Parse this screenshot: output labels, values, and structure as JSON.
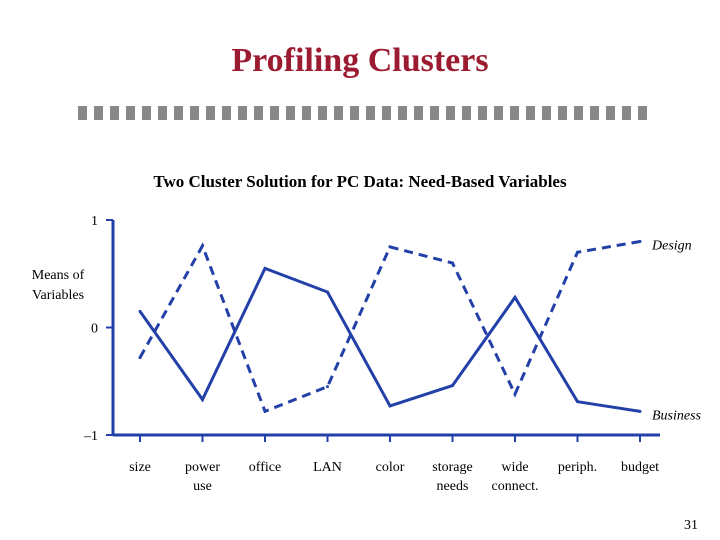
{
  "slide": {
    "title": "Profiling Clusters",
    "page_number": "31",
    "accent_color": "#9b1b30",
    "line_color": "#2340a8"
  },
  "chart_data": {
    "type": "line",
    "title": "Two Cluster Solution for PC Data: Need-Based Variables",
    "ylabel": "Means of Variables",
    "xlabel": "",
    "ylim": [
      -1,
      1
    ],
    "yticks": [
      {
        "value": 1,
        "label": "1"
      },
      {
        "value": 0,
        "label": "0"
      },
      {
        "value": -1,
        "label": "–1"
      }
    ],
    "categories": [
      [
        "size"
      ],
      [
        "power",
        "use"
      ],
      [
        "office"
      ],
      [
        "LAN"
      ],
      [
        "color"
      ],
      [
        "storage",
        "needs"
      ],
      [
        "wide",
        "connect."
      ],
      [
        "periph."
      ],
      [
        "budget"
      ]
    ],
    "grid": false,
    "legend": "labels at right end of each line",
    "series": [
      {
        "name": "Design",
        "style": "dashed",
        "values": [
          -0.28,
          0.76,
          -0.78,
          -0.55,
          0.75,
          0.6,
          -0.62,
          0.7,
          0.8
        ]
      },
      {
        "name": "Business",
        "style": "solid",
        "values": [
          0.15,
          -0.67,
          0.55,
          0.33,
          -0.73,
          -0.54,
          0.28,
          -0.69,
          -0.78
        ]
      }
    ]
  }
}
